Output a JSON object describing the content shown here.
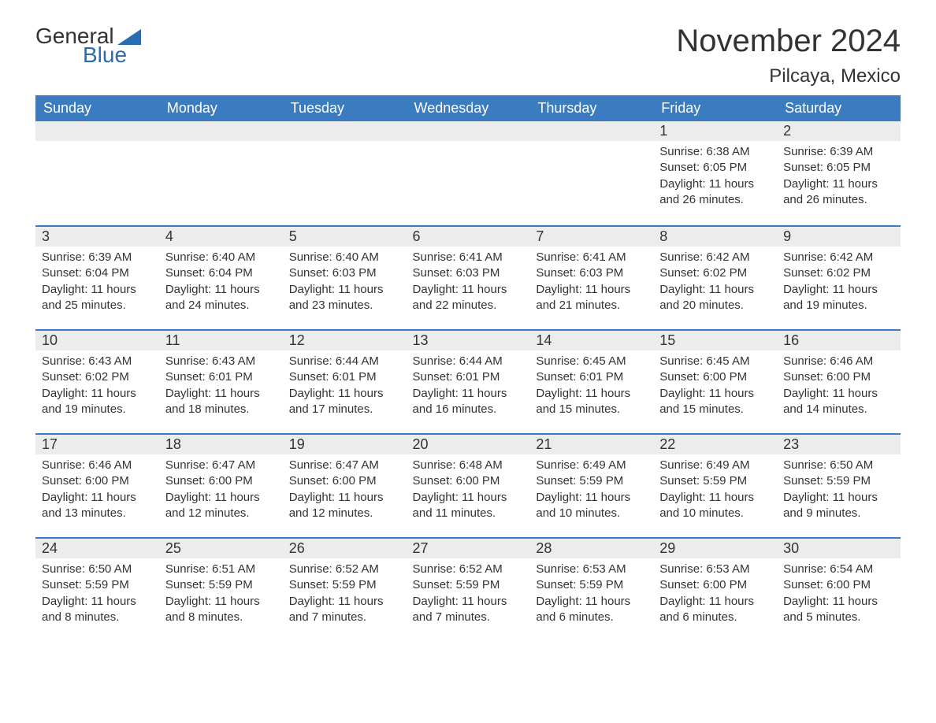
{
  "brand": {
    "part1": "General",
    "part2": "Blue"
  },
  "title": "November 2024",
  "location": "Pilcaya, Mexico",
  "colors": {
    "header_bg": "#3b7bbf",
    "header_text": "#ffffff",
    "row_border": "#3b7bbf",
    "daynum_bg": "#ececec",
    "body_text": "#333333",
    "brand_blue": "#2a6cb0",
    "background": "#ffffff"
  },
  "layout": {
    "fontsize_title": 40,
    "fontsize_location": 24,
    "fontsize_header": 18,
    "fontsize_daynum": 18,
    "fontsize_body": 15
  },
  "weekdays": [
    "Sunday",
    "Monday",
    "Tuesday",
    "Wednesday",
    "Thursday",
    "Friday",
    "Saturday"
  ],
  "weeks": [
    [
      {
        "empty": true
      },
      {
        "empty": true
      },
      {
        "empty": true
      },
      {
        "empty": true
      },
      {
        "empty": true
      },
      {
        "day": "1",
        "sunrise": "Sunrise: 6:38 AM",
        "sunset": "Sunset: 6:05 PM",
        "daylight1": "Daylight: 11 hours",
        "daylight2": "and 26 minutes."
      },
      {
        "day": "2",
        "sunrise": "Sunrise: 6:39 AM",
        "sunset": "Sunset: 6:05 PM",
        "daylight1": "Daylight: 11 hours",
        "daylight2": "and 26 minutes."
      }
    ],
    [
      {
        "day": "3",
        "sunrise": "Sunrise: 6:39 AM",
        "sunset": "Sunset: 6:04 PM",
        "daylight1": "Daylight: 11 hours",
        "daylight2": "and 25 minutes."
      },
      {
        "day": "4",
        "sunrise": "Sunrise: 6:40 AM",
        "sunset": "Sunset: 6:04 PM",
        "daylight1": "Daylight: 11 hours",
        "daylight2": "and 24 minutes."
      },
      {
        "day": "5",
        "sunrise": "Sunrise: 6:40 AM",
        "sunset": "Sunset: 6:03 PM",
        "daylight1": "Daylight: 11 hours",
        "daylight2": "and 23 minutes."
      },
      {
        "day": "6",
        "sunrise": "Sunrise: 6:41 AM",
        "sunset": "Sunset: 6:03 PM",
        "daylight1": "Daylight: 11 hours",
        "daylight2": "and 22 minutes."
      },
      {
        "day": "7",
        "sunrise": "Sunrise: 6:41 AM",
        "sunset": "Sunset: 6:03 PM",
        "daylight1": "Daylight: 11 hours",
        "daylight2": "and 21 minutes."
      },
      {
        "day": "8",
        "sunrise": "Sunrise: 6:42 AM",
        "sunset": "Sunset: 6:02 PM",
        "daylight1": "Daylight: 11 hours",
        "daylight2": "and 20 minutes."
      },
      {
        "day": "9",
        "sunrise": "Sunrise: 6:42 AM",
        "sunset": "Sunset: 6:02 PM",
        "daylight1": "Daylight: 11 hours",
        "daylight2": "and 19 minutes."
      }
    ],
    [
      {
        "day": "10",
        "sunrise": "Sunrise: 6:43 AM",
        "sunset": "Sunset: 6:02 PM",
        "daylight1": "Daylight: 11 hours",
        "daylight2": "and 19 minutes."
      },
      {
        "day": "11",
        "sunrise": "Sunrise: 6:43 AM",
        "sunset": "Sunset: 6:01 PM",
        "daylight1": "Daylight: 11 hours",
        "daylight2": "and 18 minutes."
      },
      {
        "day": "12",
        "sunrise": "Sunrise: 6:44 AM",
        "sunset": "Sunset: 6:01 PM",
        "daylight1": "Daylight: 11 hours",
        "daylight2": "and 17 minutes."
      },
      {
        "day": "13",
        "sunrise": "Sunrise: 6:44 AM",
        "sunset": "Sunset: 6:01 PM",
        "daylight1": "Daylight: 11 hours",
        "daylight2": "and 16 minutes."
      },
      {
        "day": "14",
        "sunrise": "Sunrise: 6:45 AM",
        "sunset": "Sunset: 6:01 PM",
        "daylight1": "Daylight: 11 hours",
        "daylight2": "and 15 minutes."
      },
      {
        "day": "15",
        "sunrise": "Sunrise: 6:45 AM",
        "sunset": "Sunset: 6:00 PM",
        "daylight1": "Daylight: 11 hours",
        "daylight2": "and 15 minutes."
      },
      {
        "day": "16",
        "sunrise": "Sunrise: 6:46 AM",
        "sunset": "Sunset: 6:00 PM",
        "daylight1": "Daylight: 11 hours",
        "daylight2": "and 14 minutes."
      }
    ],
    [
      {
        "day": "17",
        "sunrise": "Sunrise: 6:46 AM",
        "sunset": "Sunset: 6:00 PM",
        "daylight1": "Daylight: 11 hours",
        "daylight2": "and 13 minutes."
      },
      {
        "day": "18",
        "sunrise": "Sunrise: 6:47 AM",
        "sunset": "Sunset: 6:00 PM",
        "daylight1": "Daylight: 11 hours",
        "daylight2": "and 12 minutes."
      },
      {
        "day": "19",
        "sunrise": "Sunrise: 6:47 AM",
        "sunset": "Sunset: 6:00 PM",
        "daylight1": "Daylight: 11 hours",
        "daylight2": "and 12 minutes."
      },
      {
        "day": "20",
        "sunrise": "Sunrise: 6:48 AM",
        "sunset": "Sunset: 6:00 PM",
        "daylight1": "Daylight: 11 hours",
        "daylight2": "and 11 minutes."
      },
      {
        "day": "21",
        "sunrise": "Sunrise: 6:49 AM",
        "sunset": "Sunset: 5:59 PM",
        "daylight1": "Daylight: 11 hours",
        "daylight2": "and 10 minutes."
      },
      {
        "day": "22",
        "sunrise": "Sunrise: 6:49 AM",
        "sunset": "Sunset: 5:59 PM",
        "daylight1": "Daylight: 11 hours",
        "daylight2": "and 10 minutes."
      },
      {
        "day": "23",
        "sunrise": "Sunrise: 6:50 AM",
        "sunset": "Sunset: 5:59 PM",
        "daylight1": "Daylight: 11 hours",
        "daylight2": "and 9 minutes."
      }
    ],
    [
      {
        "day": "24",
        "sunrise": "Sunrise: 6:50 AM",
        "sunset": "Sunset: 5:59 PM",
        "daylight1": "Daylight: 11 hours",
        "daylight2": "and 8 minutes."
      },
      {
        "day": "25",
        "sunrise": "Sunrise: 6:51 AM",
        "sunset": "Sunset: 5:59 PM",
        "daylight1": "Daylight: 11 hours",
        "daylight2": "and 8 minutes."
      },
      {
        "day": "26",
        "sunrise": "Sunrise: 6:52 AM",
        "sunset": "Sunset: 5:59 PM",
        "daylight1": "Daylight: 11 hours",
        "daylight2": "and 7 minutes."
      },
      {
        "day": "27",
        "sunrise": "Sunrise: 6:52 AM",
        "sunset": "Sunset: 5:59 PM",
        "daylight1": "Daylight: 11 hours",
        "daylight2": "and 7 minutes."
      },
      {
        "day": "28",
        "sunrise": "Sunrise: 6:53 AM",
        "sunset": "Sunset: 5:59 PM",
        "daylight1": "Daylight: 11 hours",
        "daylight2": "and 6 minutes."
      },
      {
        "day": "29",
        "sunrise": "Sunrise: 6:53 AM",
        "sunset": "Sunset: 6:00 PM",
        "daylight1": "Daylight: 11 hours",
        "daylight2": "and 6 minutes."
      },
      {
        "day": "30",
        "sunrise": "Sunrise: 6:54 AM",
        "sunset": "Sunset: 6:00 PM",
        "daylight1": "Daylight: 11 hours",
        "daylight2": "and 5 minutes."
      }
    ]
  ]
}
